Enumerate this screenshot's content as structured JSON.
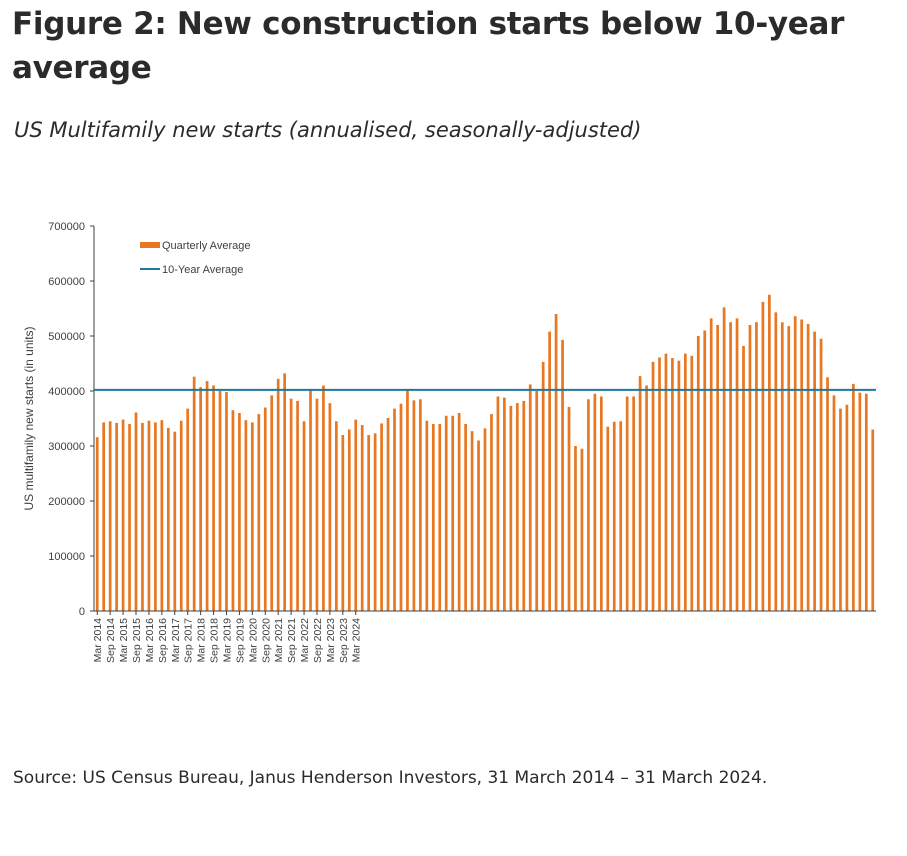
{
  "header": {
    "title": "Figure 2: New construction starts below 10-year average",
    "subtitle": "US Multifamily new starts (annualised, seasonally-adjusted)"
  },
  "footer": {
    "source": "Source: US Census Bureau, Janus Henderson Investors, 31 March 2014 – 31 March 2024."
  },
  "colors": {
    "bars": "#e87722",
    "average_line": "#1b7a9c",
    "axis": "#404040"
  },
  "chart_data": {
    "type": "bar",
    "ylabel": "US multifamily new starts (in units)",
    "xlabel": "",
    "ylim": [
      0,
      700000
    ],
    "yticks": [
      0,
      100000,
      200000,
      300000,
      400000,
      500000,
      600000,
      700000
    ],
    "x_start": "Mar 2014",
    "x_end": "Mar 2024",
    "x_tick_labels": [
      "Mar 2014",
      "Sep 2014",
      "Mar 2015",
      "Sep 2015",
      "Mar 2016",
      "Sep 2016",
      "Mar 2017",
      "Sep 2017",
      "Mar 2018",
      "Sep 2018",
      "Mar 2019",
      "Sep 2019",
      "Mar 2020",
      "Sep 2020",
      "Mar 2021",
      "Sep 2021",
      "Mar 2022",
      "Sep 2022",
      "Mar 2023",
      "Sep 2023",
      "Mar 2024"
    ],
    "legend": [
      "Quarterly Average",
      "10-Year Average"
    ],
    "legend_position": "top-left",
    "grid": false,
    "series": [
      {
        "name": "Quarterly Average",
        "kind": "bar",
        "values": [
          316000,
          343000,
          345000,
          342000,
          348000,
          340000,
          361000,
          342000,
          346000,
          343000,
          347000,
          333000,
          326000,
          346000,
          368000,
          426000,
          407000,
          418000,
          410000,
          400000,
          398000,
          365000,
          360000,
          347000,
          343000,
          358000,
          370000,
          392000,
          422000,
          432000,
          386000,
          382000,
          345000,
          402000,
          386000,
          410000,
          378000,
          345000,
          320000,
          330000,
          348000,
          338000,
          320000,
          323000,
          341000,
          351000,
          368000,
          377000,
          402000,
          383000,
          385000,
          346000,
          340000,
          340000,
          355000,
          355000,
          360000,
          340000,
          327000,
          310000,
          332000,
          358000,
          390000,
          388000,
          373000,
          378000,
          382000,
          412000,
          400000,
          453000,
          508000,
          540000,
          493000,
          371000,
          300000,
          295000,
          385000,
          395000,
          390000,
          335000,
          344000,
          345000,
          390000,
          390000,
          427000,
          410000,
          453000,
          461000,
          468000,
          460000,
          455000,
          468000,
          464000,
          500000,
          510000,
          532000,
          520000,
          552000,
          525000,
          532000,
          482000,
          520000,
          525000,
          562000,
          575000,
          543000,
          525000,
          518000,
          536000,
          530000,
          522000,
          508000,
          495000,
          425000,
          392000,
          368000,
          375000,
          413000,
          397000,
          395000,
          330000
        ]
      },
      {
        "name": "10-Year Average",
        "kind": "line",
        "value": 402000
      }
    ]
  }
}
